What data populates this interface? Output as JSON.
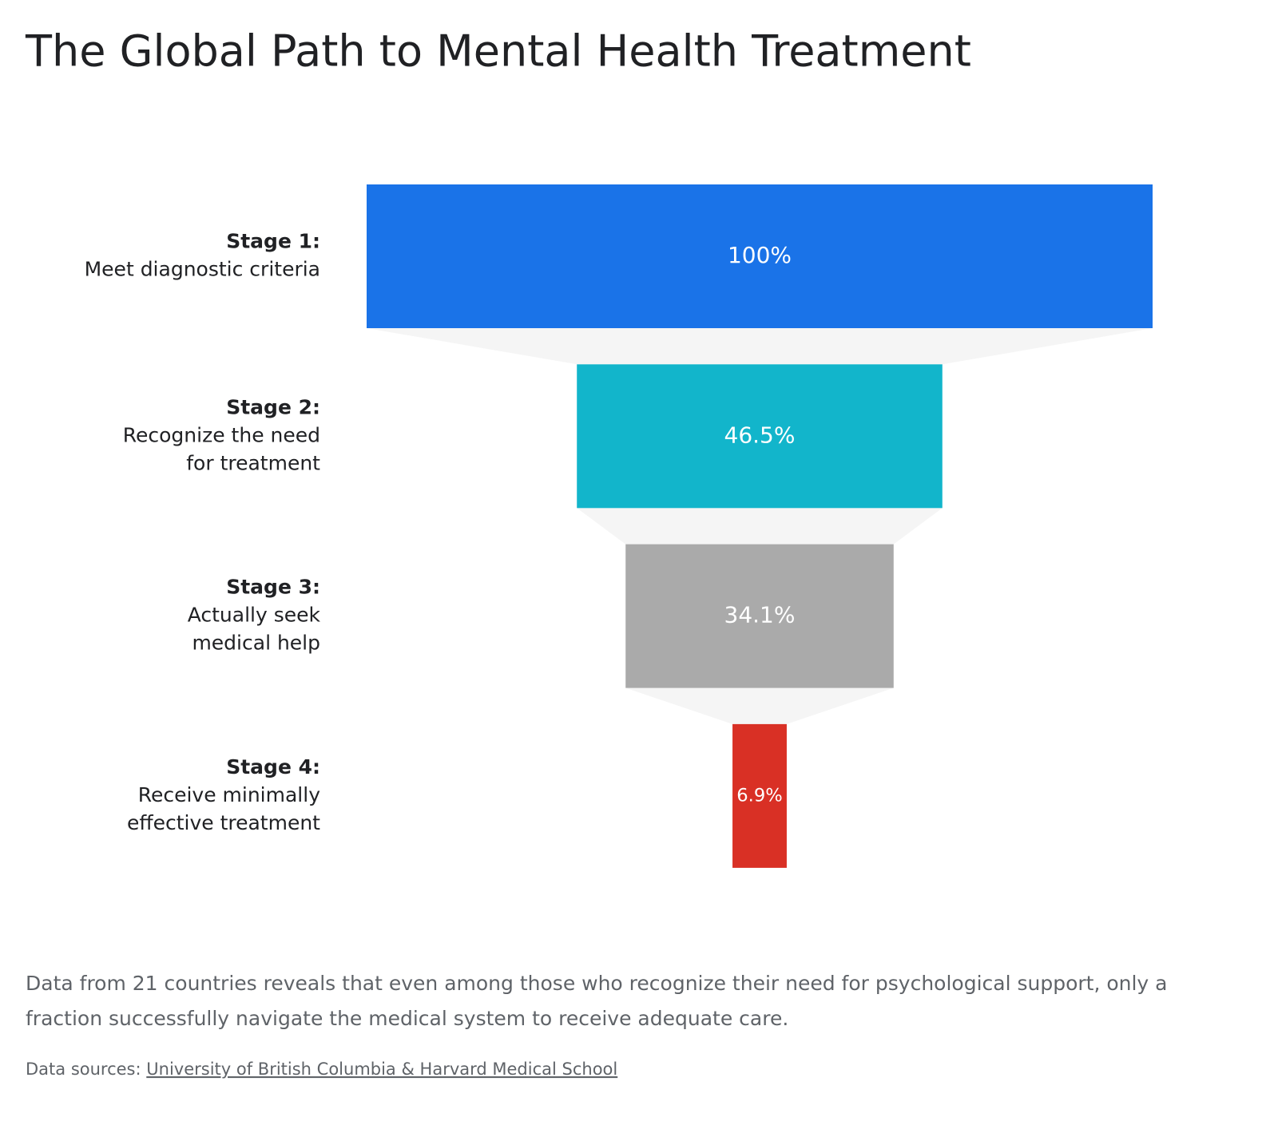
{
  "chart_data": {
    "type": "funnel",
    "title": "The Global Path to Mental Health Treatment",
    "categories": [
      "Stage 1:",
      "Stage 2:",
      "Stage 3:",
      "Stage 4:"
    ],
    "category_descriptions": [
      [
        "Meet diagnostic criteria"
      ],
      [
        "Recognize the need",
        "for treatment"
      ],
      [
        "Actually seek",
        "medical help"
      ],
      [
        "Receive minimally",
        "effective treatment"
      ]
    ],
    "values": [
      100,
      46.5,
      34.1,
      6.9
    ],
    "value_labels": [
      "100%",
      "46.5%",
      "34.1%",
      "6.9%"
    ],
    "colors": [
      "#1a73e8",
      "#12b5cb",
      "#aaaaaa",
      "#d93025"
    ],
    "connector_color": "#f5f5f5",
    "description": [
      "Data from 21 countries reveals that even among those who recognize their need for psychological support, only a",
      "fraction successfully navigate the medical system to receive adequate care."
    ],
    "source_label": "Data sources:",
    "source_link": "University of British Columbia & Harvard Medical School"
  }
}
